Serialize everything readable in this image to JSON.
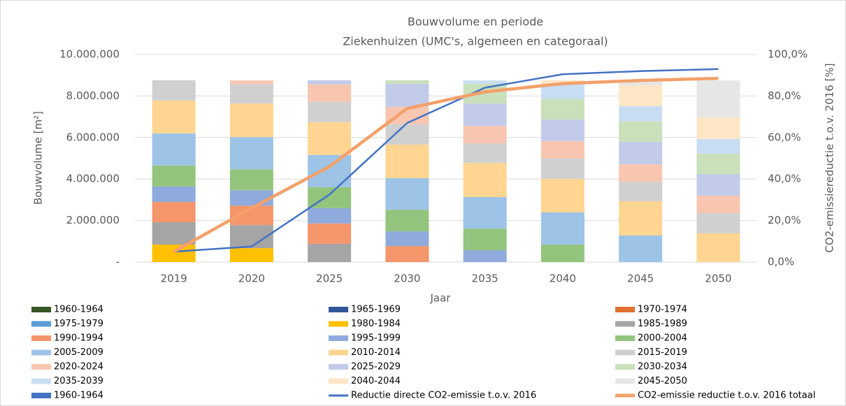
{
  "chart_data": {
    "type": "bar",
    "stacked": true,
    "title": "Bouwvolume en periode",
    "subtitle": "Ziekenhuizen (UMC's, algemeen en categoraal)",
    "x_label": "Jaar",
    "y_label": "Bouwvolume [m²]",
    "y2_label": "CO2-emissiereductie t.o.v. 2016 [%]",
    "categories": [
      "2019",
      "2020",
      "2025",
      "2030",
      "2035",
      "2040",
      "2045",
      "2050"
    ],
    "ylim": [
      0,
      10000000
    ],
    "yticks": [
      {
        "value": 0,
        "label": "-"
      },
      {
        "value": 2000000,
        "label": "2.000.000"
      },
      {
        "value": 4000000,
        "label": "4.000.000"
      },
      {
        "value": 6000000,
        "label": "6.000.000"
      },
      {
        "value": 8000000,
        "label": "8.000.000"
      },
      {
        "value": 10000000,
        "label": "10.000.000"
      }
    ],
    "y2lim": [
      0,
      100
    ],
    "y2ticks": [
      {
        "value": 0,
        "label": "0,0%"
      },
      {
        "value": 20,
        "label": "20,0%"
      },
      {
        "value": 40,
        "label": "40,0%"
      },
      {
        "value": 60,
        "label": "60,0%"
      },
      {
        "value": 80,
        "label": "80,0%"
      },
      {
        "value": 100,
        "label": "100,0%"
      }
    ],
    "grid": true,
    "series": [
      {
        "name": "1960-1964",
        "color": "#375623",
        "values": [
          0,
          0,
          0,
          0,
          0,
          0,
          0,
          0
        ]
      },
      {
        "name": "1965-1969",
        "color": "#2f5597",
        "values": [
          0,
          0,
          0,
          0,
          0,
          0,
          0,
          0
        ]
      },
      {
        "name": "1970-1974",
        "color": "#e07030",
        "values": [
          0,
          0,
          0,
          0,
          0,
          0,
          0,
          0
        ]
      },
      {
        "name": "1975-1979",
        "color": "#5b9bd5",
        "values": [
          0,
          0,
          0,
          0,
          0,
          0,
          0,
          0
        ]
      },
      {
        "name": "1980-1984",
        "color": "#ffc000",
        "values": [
          840000,
          670000,
          0,
          0,
          0,
          0,
          0,
          0
        ]
      },
      {
        "name": "1985-1989",
        "color": "#a5a5a5",
        "values": [
          1080000,
          1110000,
          880000,
          0,
          0,
          0,
          0,
          0
        ]
      },
      {
        "name": "1990-1994",
        "color": "#f4956a",
        "values": [
          980000,
          940000,
          980000,
          770000,
          0,
          0,
          0,
          0
        ]
      },
      {
        "name": "1995-1999",
        "color": "#8faadc",
        "values": [
          740000,
          740000,
          740000,
          710000,
          570000,
          0,
          0,
          0
        ]
      },
      {
        "name": "2000-2004",
        "color": "#93c47d",
        "values": [
          1010000,
          1010000,
          1010000,
          1040000,
          1040000,
          840000,
          0,
          0
        ]
      },
      {
        "name": "2005-2009",
        "color": "#9dc3e6",
        "values": [
          1550000,
          1550000,
          1550000,
          1520000,
          1520000,
          1550000,
          1280000,
          0
        ]
      },
      {
        "name": "2010-2014",
        "color": "#ffd591",
        "values": [
          1580000,
          1620000,
          1580000,
          1620000,
          1650000,
          1620000,
          1650000,
          1380000
        ]
      },
      {
        "name": "2015-2019",
        "color": "#d0d0d0",
        "values": [
          980000,
          940000,
          980000,
          980000,
          940000,
          980000,
          940000,
          980000
        ]
      },
      {
        "name": "2020-2024",
        "color": "#f8c6b0",
        "values": [
          0,
          170000,
          840000,
          840000,
          840000,
          840000,
          840000,
          840000
        ]
      },
      {
        "name": "2025-2029",
        "color": "#c3cbea",
        "values": [
          0,
          0,
          200000,
          1110000,
          1080000,
          1040000,
          1080000,
          1040000
        ]
      },
      {
        "name": "2030-2034",
        "color": "#c9e0bb",
        "values": [
          0,
          0,
          0,
          170000,
          940000,
          980000,
          980000,
          980000
        ]
      },
      {
        "name": "2035-2039",
        "color": "#c9ddf2",
        "values": [
          0,
          0,
          0,
          0,
          170000,
          740000,
          740000,
          710000
        ]
      },
      {
        "name": "2040-2044",
        "color": "#fde6c6",
        "values": [
          0,
          0,
          0,
          0,
          0,
          170000,
          1010000,
          1040000
        ]
      },
      {
        "name": "2045-2050",
        "color": "#e6e6e6",
        "values": [
          0,
          0,
          0,
          0,
          0,
          0,
          240000,
          1780000
        ]
      },
      {
        "name": "1960-1964",
        "color": "#4472c4",
        "values": [
          0,
          0,
          0,
          0,
          0,
          0,
          0,
          0
        ]
      }
    ],
    "lines": [
      {
        "name": "Reductie directe CO2-emissie t.o.v. 2016",
        "color": "#4472c4",
        "axis": "y2",
        "values": [
          5,
          7.5,
          32.5,
          67,
          84,
          90.5,
          92,
          93
        ]
      },
      {
        "name": "CO2-emissie reductie t.o.v. 2016 totaal",
        "color": "#f4a06a",
        "axis": "y2",
        "values": [
          5,
          26,
          46,
          74,
          82,
          86,
          87.5,
          88.5
        ]
      }
    ]
  }
}
